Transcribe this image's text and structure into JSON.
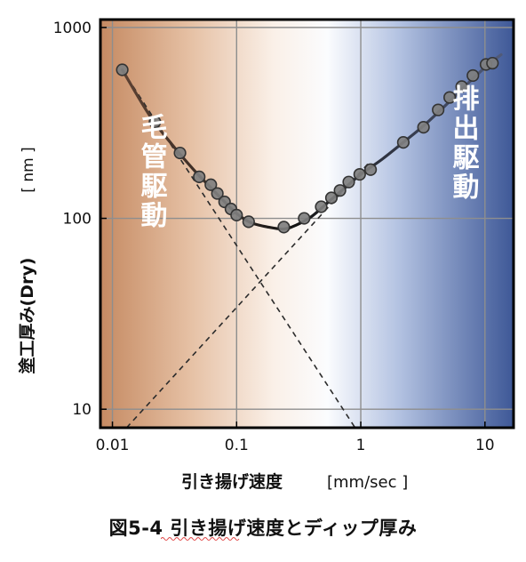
{
  "chart_data": {
    "type": "scatter",
    "xscale": "log",
    "yscale": "log",
    "xlim": [
      0.008,
      17
    ],
    "ylim": [
      8,
      1100
    ],
    "xticks": [
      0.01,
      0.1,
      1,
      10
    ],
    "xtick_labels": [
      "0.01",
      "0.1",
      "1",
      "10"
    ],
    "yticks": [
      10,
      100,
      1000
    ],
    "ytick_labels": [
      "10",
      "100",
      "1000"
    ],
    "xlabel": "引き揚げ速度",
    "xunit": "[mm/sec ]",
    "ylabel": "塗工厚み(Dry)",
    "yunit": "[ nm ]",
    "grid": true,
    "regions": [
      {
        "label": "毛管駆動",
        "color": "#c58a62"
      },
      {
        "label": "排出駆動",
        "color": "#3e5897"
      }
    ],
    "points": {
      "x": [
        0.012,
        0.022,
        0.035,
        0.05,
        0.062,
        0.07,
        0.08,
        0.09,
        0.1,
        0.125,
        0.24,
        0.35,
        0.48,
        0.58,
        0.68,
        0.8,
        0.98,
        1.2,
        2.2,
        3.2,
        4.2,
        5.2,
        6.5,
        8.0,
        10.2,
        11.5
      ],
      "y": [
        600,
        320,
        220,
        165,
        150,
        135,
        122,
        112,
        104,
        96,
        90,
        100,
        115,
        128,
        140,
        155,
        170,
        180,
        250,
        300,
        370,
        430,
        490,
        560,
        640,
        650
      ]
    },
    "fit_curve": {
      "x": [
        0.012,
        0.02,
        0.03,
        0.045,
        0.06,
        0.08,
        0.1,
        0.13,
        0.18,
        0.24,
        0.3,
        0.4,
        0.55,
        0.75,
        1.0,
        1.5,
        2.2,
        3.2,
        5,
        8,
        11,
        13.5
      ],
      "y": [
        600,
        345,
        245,
        180,
        148,
        122,
        106,
        95,
        90,
        88,
        92,
        102,
        122,
        145,
        170,
        205,
        250,
        305,
        400,
        540,
        650,
        720
      ]
    },
    "capillary_asymptote": {
      "x": [
        0.012,
        0.9
      ],
      "y": [
        600,
        8
      ]
    },
    "drainage_asymptote": {
      "x": [
        0.013,
        1.2
      ],
      "y": [
        8,
        200
      ]
    },
    "colors": {
      "marker_fill": "#7f7f7f",
      "marker_edge": "#333333",
      "curve_left": "#5a4032",
      "curve_mid": "#141414",
      "curve_right": "#505a78",
      "frame": "#000000",
      "grid": "#8e8e8e"
    }
  },
  "figure_caption": {
    "prefix": "図5-4",
    "text": "引き揚げ速度とディップ厚み"
  }
}
